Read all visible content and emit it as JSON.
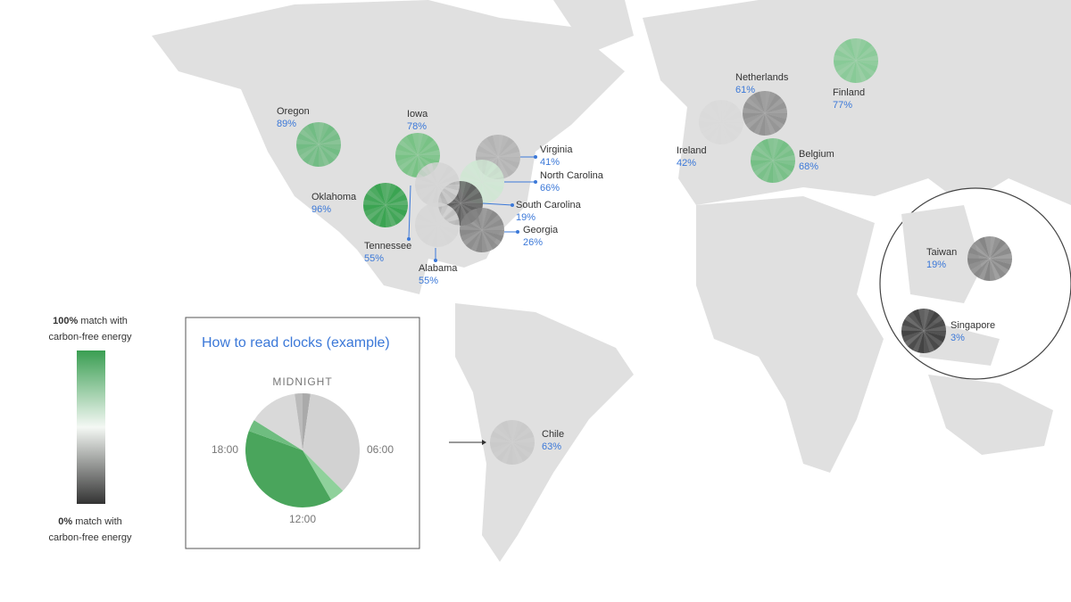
{
  "locations": [
    {
      "name": "Oregon",
      "value": "89%"
    },
    {
      "name": "Iowa",
      "value": "78%"
    },
    {
      "name": "Oklahoma",
      "value": "96%"
    },
    {
      "name": "Virginia",
      "value": "41%"
    },
    {
      "name": "North Carolina",
      "value": "66%"
    },
    {
      "name": "South Carolina",
      "value": "19%"
    },
    {
      "name": "Georgia",
      "value": "26%"
    },
    {
      "name": "Tennessee",
      "value": "55%"
    },
    {
      "name": "Alabama",
      "value": "55%"
    },
    {
      "name": "Netherlands",
      "value": "61%"
    },
    {
      "name": "Ireland",
      "value": "42%"
    },
    {
      "name": "Finland",
      "value": "77%"
    },
    {
      "name": "Belgium",
      "value": "68%"
    },
    {
      "name": "Taiwan",
      "value": "19%"
    },
    {
      "name": "Singapore",
      "value": "3%"
    },
    {
      "name": "Chile",
      "value": "63%"
    }
  ],
  "legend": {
    "top_bold": "100%",
    "top_text": "match with",
    "top_line2": "carbon-free energy",
    "bottom_bold": "0%",
    "bottom_text": "match with",
    "bottom_line2": "carbon-free energy"
  },
  "example": {
    "title": "How to read clocks (example)",
    "labels": [
      "MIDNIGHT",
      "06:00",
      "12:00",
      "18:00"
    ]
  }
}
